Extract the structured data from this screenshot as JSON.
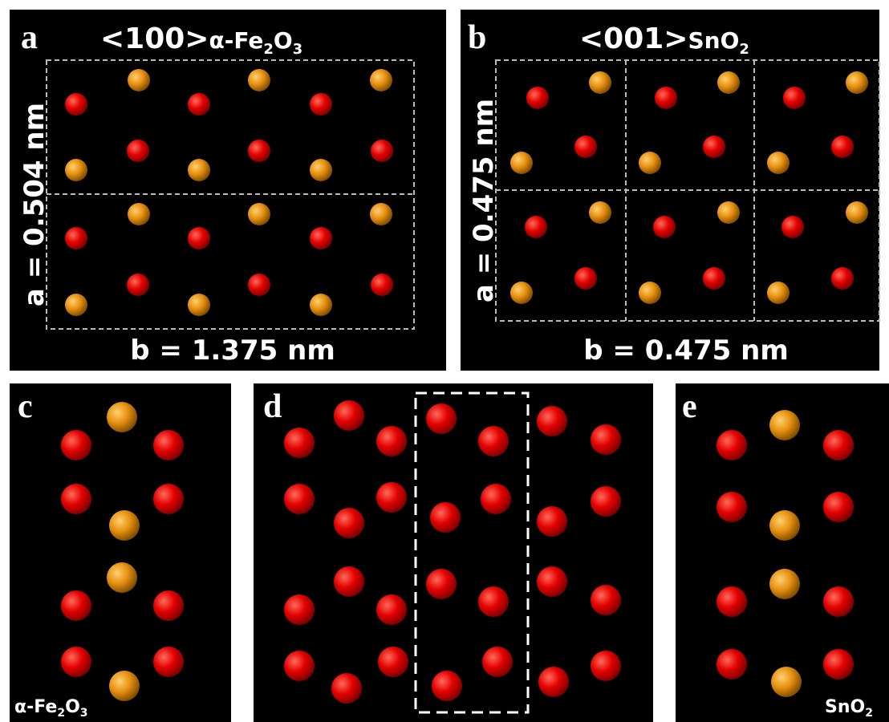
{
  "panels": [
    {
      "label": "a",
      "title": [
        "<100>",
        "α-Fe",
        "2",
        "O",
        "3"
      ],
      "side_label": "a = 0.504 nm",
      "bottom_label": "b = 1.375 nm"
    },
    {
      "label": "b",
      "title": [
        "<001>",
        "SnO",
        "2"
      ],
      "side_label": "a = 0.475 nm",
      "bottom_label": "b = 0.475 nm"
    },
    {
      "label": "c",
      "caption": [
        "α-Fe",
        "2",
        "O",
        "3"
      ]
    },
    {
      "label": "d"
    },
    {
      "label": "e",
      "caption": [
        "SnO",
        "2"
      ]
    }
  ]
}
